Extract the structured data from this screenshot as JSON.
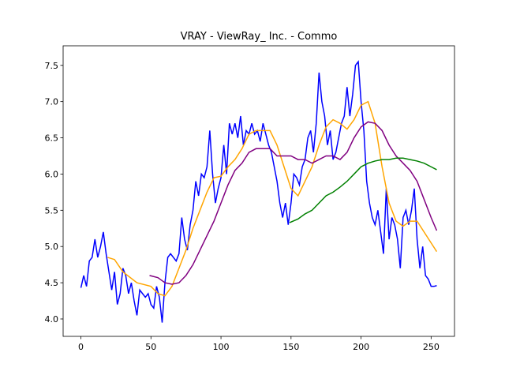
{
  "chart_data": {
    "type": "line",
    "title": "VRAY - ViewRay_ Inc. - Commo",
    "xlim": [
      -12.7,
      266.7
    ],
    "ylim": [
      3.76,
      7.77
    ],
    "xticks": [
      0,
      50,
      100,
      150,
      200,
      250
    ],
    "yticks": [
      {
        "value": 4,
        "label": "4.0"
      },
      4.5,
      {
        "value": 5,
        "label": "5.0"
      },
      5.5,
      {
        "value": 6,
        "label": "6.0"
      },
      6.5,
      {
        "value": 7,
        "label": "7.0"
      },
      7.5
    ],
    "series": [
      {
        "color": "#0000ff",
        "x": [
          0,
          2,
          4,
          6,
          8,
          10,
          12,
          14,
          16,
          18,
          20,
          22,
          24,
          26,
          28,
          30,
          32,
          34,
          36,
          38,
          40,
          42,
          44,
          46,
          48,
          50,
          52,
          54,
          56,
          58,
          60,
          62,
          64,
          66,
          68,
          70,
          72,
          74,
          76,
          78,
          80,
          82,
          84,
          86,
          88,
          90,
          92,
          94,
          96,
          98,
          100,
          102,
          104,
          106,
          108,
          110,
          112,
          114,
          116,
          118,
          120,
          122,
          124,
          126,
          128,
          130,
          132,
          134,
          136,
          138,
          140,
          142,
          144,
          146,
          148,
          150,
          152,
          154,
          156,
          158,
          160,
          162,
          164,
          166,
          168,
          170,
          172,
          174,
          176,
          178,
          180,
          182,
          184,
          186,
          188,
          190,
          192,
          194,
          196,
          198,
          200,
          202,
          204,
          206,
          208,
          210,
          212,
          214,
          216,
          218,
          220,
          222,
          224,
          226,
          228,
          230,
          232,
          234,
          236,
          238,
          240,
          242,
          244,
          246,
          248,
          250,
          252,
          254
        ],
        "values": [
          4.43,
          4.6,
          4.45,
          4.8,
          4.85,
          5.1,
          4.85,
          5.0,
          5.2,
          4.9,
          4.65,
          4.4,
          4.65,
          4.2,
          4.35,
          4.7,
          4.6,
          4.35,
          4.5,
          4.25,
          4.05,
          4.4,
          4.35,
          4.3,
          4.35,
          4.2,
          4.15,
          4.45,
          4.3,
          3.95,
          4.5,
          4.85,
          4.9,
          4.85,
          4.8,
          4.9,
          5.4,
          5.1,
          4.95,
          5.3,
          5.5,
          5.9,
          5.7,
          6.0,
          5.95,
          6.1,
          6.6,
          6.0,
          5.6,
          5.8,
          5.95,
          6.4,
          6.0,
          6.7,
          6.55,
          6.7,
          6.5,
          6.8,
          6.4,
          6.6,
          6.55,
          6.7,
          6.55,
          6.6,
          6.45,
          6.7,
          6.55,
          6.4,
          6.3,
          6.1,
          5.9,
          5.6,
          5.4,
          5.6,
          5.3,
          5.6,
          6.0,
          5.95,
          5.85,
          6.1,
          6.2,
          6.5,
          6.6,
          6.3,
          6.7,
          7.4,
          7.0,
          6.8,
          6.4,
          6.6,
          6.2,
          6.3,
          6.5,
          6.7,
          6.8,
          7.2,
          6.8,
          7.1,
          7.5,
          7.55,
          7.0,
          6.6,
          5.9,
          5.6,
          5.4,
          5.3,
          5.5,
          5.2,
          4.9,
          5.8,
          5.1,
          5.4,
          5.3,
          5.1,
          4.7,
          5.4,
          5.5,
          5.3,
          5.5,
          5.8,
          5.1,
          4.7,
          5.0,
          4.6,
          4.55,
          4.45,
          4.45,
          4.46
        ]
      },
      {
        "color": "#ffa500",
        "x": [
          19,
          24,
          30,
          40,
          50,
          55,
          60,
          65,
          70,
          75,
          80,
          85,
          90,
          95,
          100,
          105,
          110,
          115,
          120,
          125,
          130,
          135,
          140,
          145,
          150,
          155,
          160,
          165,
          170,
          175,
          180,
          185,
          190,
          195,
          200,
          205,
          210,
          215,
          220,
          225,
          230,
          235,
          240,
          245,
          250,
          254
        ],
        "values": [
          4.85,
          4.82,
          4.65,
          4.5,
          4.45,
          4.35,
          4.32,
          4.45,
          4.7,
          4.95,
          5.25,
          5.5,
          5.75,
          5.95,
          5.97,
          6.1,
          6.2,
          6.35,
          6.55,
          6.6,
          6.6,
          6.6,
          6.4,
          6.1,
          5.8,
          5.7,
          5.9,
          6.1,
          6.4,
          6.65,
          6.75,
          6.7,
          6.62,
          6.75,
          6.95,
          7.0,
          6.7,
          6.1,
          5.6,
          5.35,
          5.28,
          5.35,
          5.35,
          5.2,
          5.05,
          4.93
        ]
      },
      {
        "color": "#800080",
        "x": [
          49,
          55,
          60,
          65,
          70,
          75,
          80,
          85,
          90,
          95,
          100,
          105,
          110,
          115,
          120,
          125,
          130,
          135,
          140,
          145,
          150,
          155,
          160,
          165,
          170,
          175,
          180,
          185,
          190,
          195,
          200,
          205,
          210,
          215,
          220,
          225,
          230,
          235,
          240,
          245,
          250,
          254
        ],
        "values": [
          4.6,
          4.57,
          4.5,
          4.48,
          4.5,
          4.6,
          4.75,
          4.95,
          5.15,
          5.35,
          5.6,
          5.85,
          6.05,
          6.15,
          6.3,
          6.35,
          6.35,
          6.35,
          6.25,
          6.25,
          6.25,
          6.2,
          6.2,
          6.15,
          6.2,
          6.25,
          6.25,
          6.2,
          6.3,
          6.5,
          6.65,
          6.72,
          6.7,
          6.6,
          6.4,
          6.25,
          6.15,
          6.05,
          5.9,
          5.65,
          5.4,
          5.22
        ]
      },
      {
        "color": "#008000",
        "x": [
          149,
          155,
          160,
          165,
          170,
          175,
          180,
          185,
          190,
          195,
          200,
          205,
          210,
          215,
          220,
          225,
          230,
          235,
          240,
          245,
          250,
          254
        ],
        "values": [
          5.33,
          5.38,
          5.45,
          5.5,
          5.6,
          5.7,
          5.75,
          5.82,
          5.9,
          6.0,
          6.1,
          6.15,
          6.18,
          6.2,
          6.2,
          6.22,
          6.22,
          6.2,
          6.18,
          6.15,
          6.1,
          6.06
        ]
      }
    ]
  }
}
